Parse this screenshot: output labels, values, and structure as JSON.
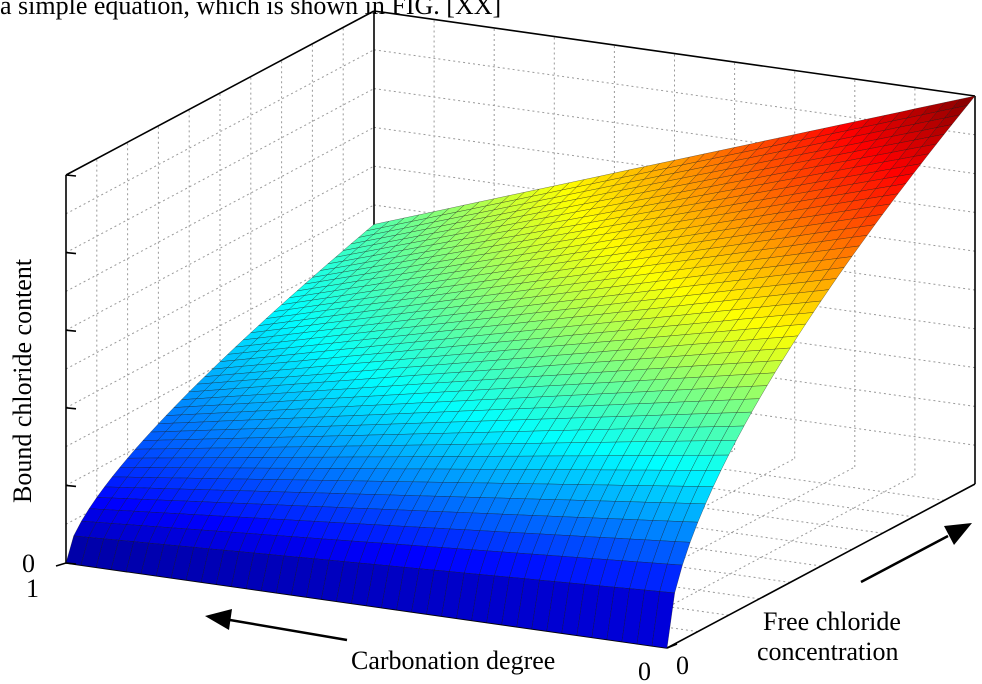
{
  "header": {
    "text": "a simple equation, which is shown in FIG. [XX]"
  },
  "chart_data": {
    "type": "surface3d",
    "title": "",
    "axes": {
      "x": {
        "label": "Carbonation degree",
        "range": [
          0,
          1
        ],
        "tick_labels": [
          "0",
          "1"
        ],
        "arrow": "toward 1 (left)"
      },
      "y": {
        "label_lines": [
          "Free chloride",
          "concentration"
        ],
        "tick_labels": [
          "0"
        ],
        "arrow": "increasing (up-right)"
      },
      "z": {
        "label": "Bound chloride content",
        "tick_labels": [
          "0"
        ]
      }
    },
    "surface": {
      "description_free": "bound chloride rises with free chloride concentration and falls as carbonation degree increases",
      "colormap": "jet",
      "grid": true
    },
    "grid": true,
    "colors": {
      "low": "#00008f",
      "mid": "#00ffff",
      "high": "#800000"
    }
  }
}
